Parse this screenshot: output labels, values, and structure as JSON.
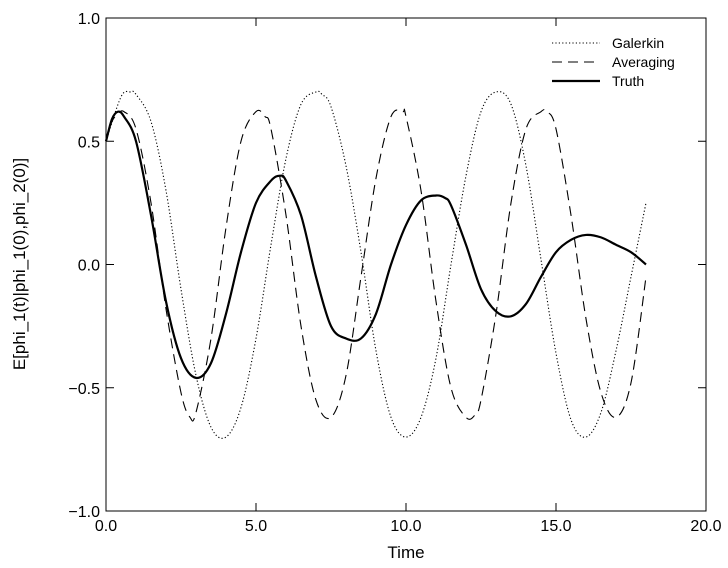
{
  "chart_data": {
    "type": "line",
    "title": "",
    "xlabel": "Time",
    "ylabel": "E[phi_1(t)|phi_1(0),phi_2(0)]",
    "xlim": [
      0,
      20
    ],
    "ylim": [
      -1,
      1
    ],
    "x_ticks": [
      0,
      5,
      10,
      15,
      20
    ],
    "x_tick_labels": [
      "0.0",
      "5.0",
      "10.0",
      "15.0",
      "20.0"
    ],
    "y_ticks": [
      -1,
      -0.5,
      0,
      0.5,
      1
    ],
    "y_tick_labels": [
      "−1.0",
      "−0.5",
      "0.0",
      "0.5",
      "1.0"
    ],
    "grid": false,
    "legend_position": "top-right",
    "series": [
      {
        "name": "Galerkin",
        "style": "dotted",
        "x": [
          0.0,
          0.5,
          0.8,
          1.0,
          1.5,
          2.0,
          2.5,
          3.0,
          3.5,
          4.0,
          4.5,
          5.0,
          5.5,
          6.0,
          6.5,
          7.0,
          7.2,
          7.5,
          8.0,
          8.5,
          9.0,
          9.5,
          10.0,
          10.5,
          11.0,
          11.5,
          12.0,
          12.5,
          13.0,
          13.5,
          14.0,
          14.5,
          15.0,
          15.5,
          16.0,
          16.5,
          17.0,
          17.5,
          18.0
        ],
        "y": [
          0.5,
          0.68,
          0.7,
          0.69,
          0.58,
          0.3,
          -0.1,
          -0.45,
          -0.66,
          -0.7,
          -0.58,
          -0.3,
          0.08,
          0.43,
          0.65,
          0.7,
          0.69,
          0.64,
          0.4,
          0.05,
          -0.35,
          -0.62,
          -0.7,
          -0.62,
          -0.38,
          0.0,
          0.36,
          0.62,
          0.7,
          0.65,
          0.4,
          0.02,
          -0.36,
          -0.63,
          -0.7,
          -0.6,
          -0.35,
          -0.05,
          0.25
        ]
      },
      {
        "name": "Averaging",
        "style": "dashed",
        "x": [
          0.0,
          0.2,
          0.4,
          0.6,
          1.0,
          1.5,
          2.0,
          2.5,
          2.8,
          3.0,
          3.5,
          4.0,
          4.5,
          5.0,
          5.3,
          5.5,
          6.0,
          6.5,
          7.0,
          7.5,
          8.0,
          8.5,
          9.0,
          9.5,
          9.9,
          10.0,
          10.5,
          11.0,
          11.5,
          12.0,
          12.3,
          12.5,
          13.0,
          13.5,
          14.0,
          14.5,
          14.7,
          15.0,
          15.5,
          16.0,
          16.5,
          17.0,
          17.5,
          18.0
        ],
        "y": [
          0.5,
          0.58,
          0.61,
          0.62,
          0.55,
          0.25,
          -0.18,
          -0.52,
          -0.62,
          -0.6,
          -0.3,
          0.15,
          0.5,
          0.62,
          0.6,
          0.55,
          0.2,
          -0.25,
          -0.55,
          -0.62,
          -0.45,
          -0.05,
          0.35,
          0.6,
          0.62,
          0.6,
          0.3,
          -0.15,
          -0.5,
          -0.62,
          -0.61,
          -0.55,
          -0.2,
          0.25,
          0.55,
          0.62,
          0.62,
          0.55,
          0.2,
          -0.22,
          -0.52,
          -0.62,
          -0.48,
          -0.05
        ]
      },
      {
        "name": "Truth",
        "style": "solid",
        "x": [
          0.0,
          0.2,
          0.4,
          0.6,
          1.0,
          1.5,
          2.0,
          2.5,
          3.0,
          3.5,
          4.0,
          4.5,
          5.0,
          5.5,
          5.8,
          6.0,
          6.5,
          7.0,
          7.5,
          8.0,
          8.5,
          9.0,
          9.5,
          10.0,
          10.5,
          11.0,
          11.3,
          11.5,
          12.0,
          12.5,
          13.0,
          13.5,
          14.0,
          14.5,
          15.0,
          15.5,
          16.0,
          16.5,
          17.0,
          17.5,
          18.0
        ],
        "y": [
          0.5,
          0.59,
          0.62,
          0.6,
          0.5,
          0.2,
          -0.15,
          -0.38,
          -0.46,
          -0.4,
          -0.2,
          0.05,
          0.25,
          0.34,
          0.36,
          0.34,
          0.2,
          -0.05,
          -0.25,
          -0.3,
          -0.3,
          -0.2,
          0.0,
          0.16,
          0.26,
          0.28,
          0.27,
          0.24,
          0.08,
          -0.1,
          -0.19,
          -0.21,
          -0.16,
          -0.05,
          0.05,
          0.1,
          0.12,
          0.11,
          0.08,
          0.05,
          0.0
        ]
      }
    ]
  }
}
